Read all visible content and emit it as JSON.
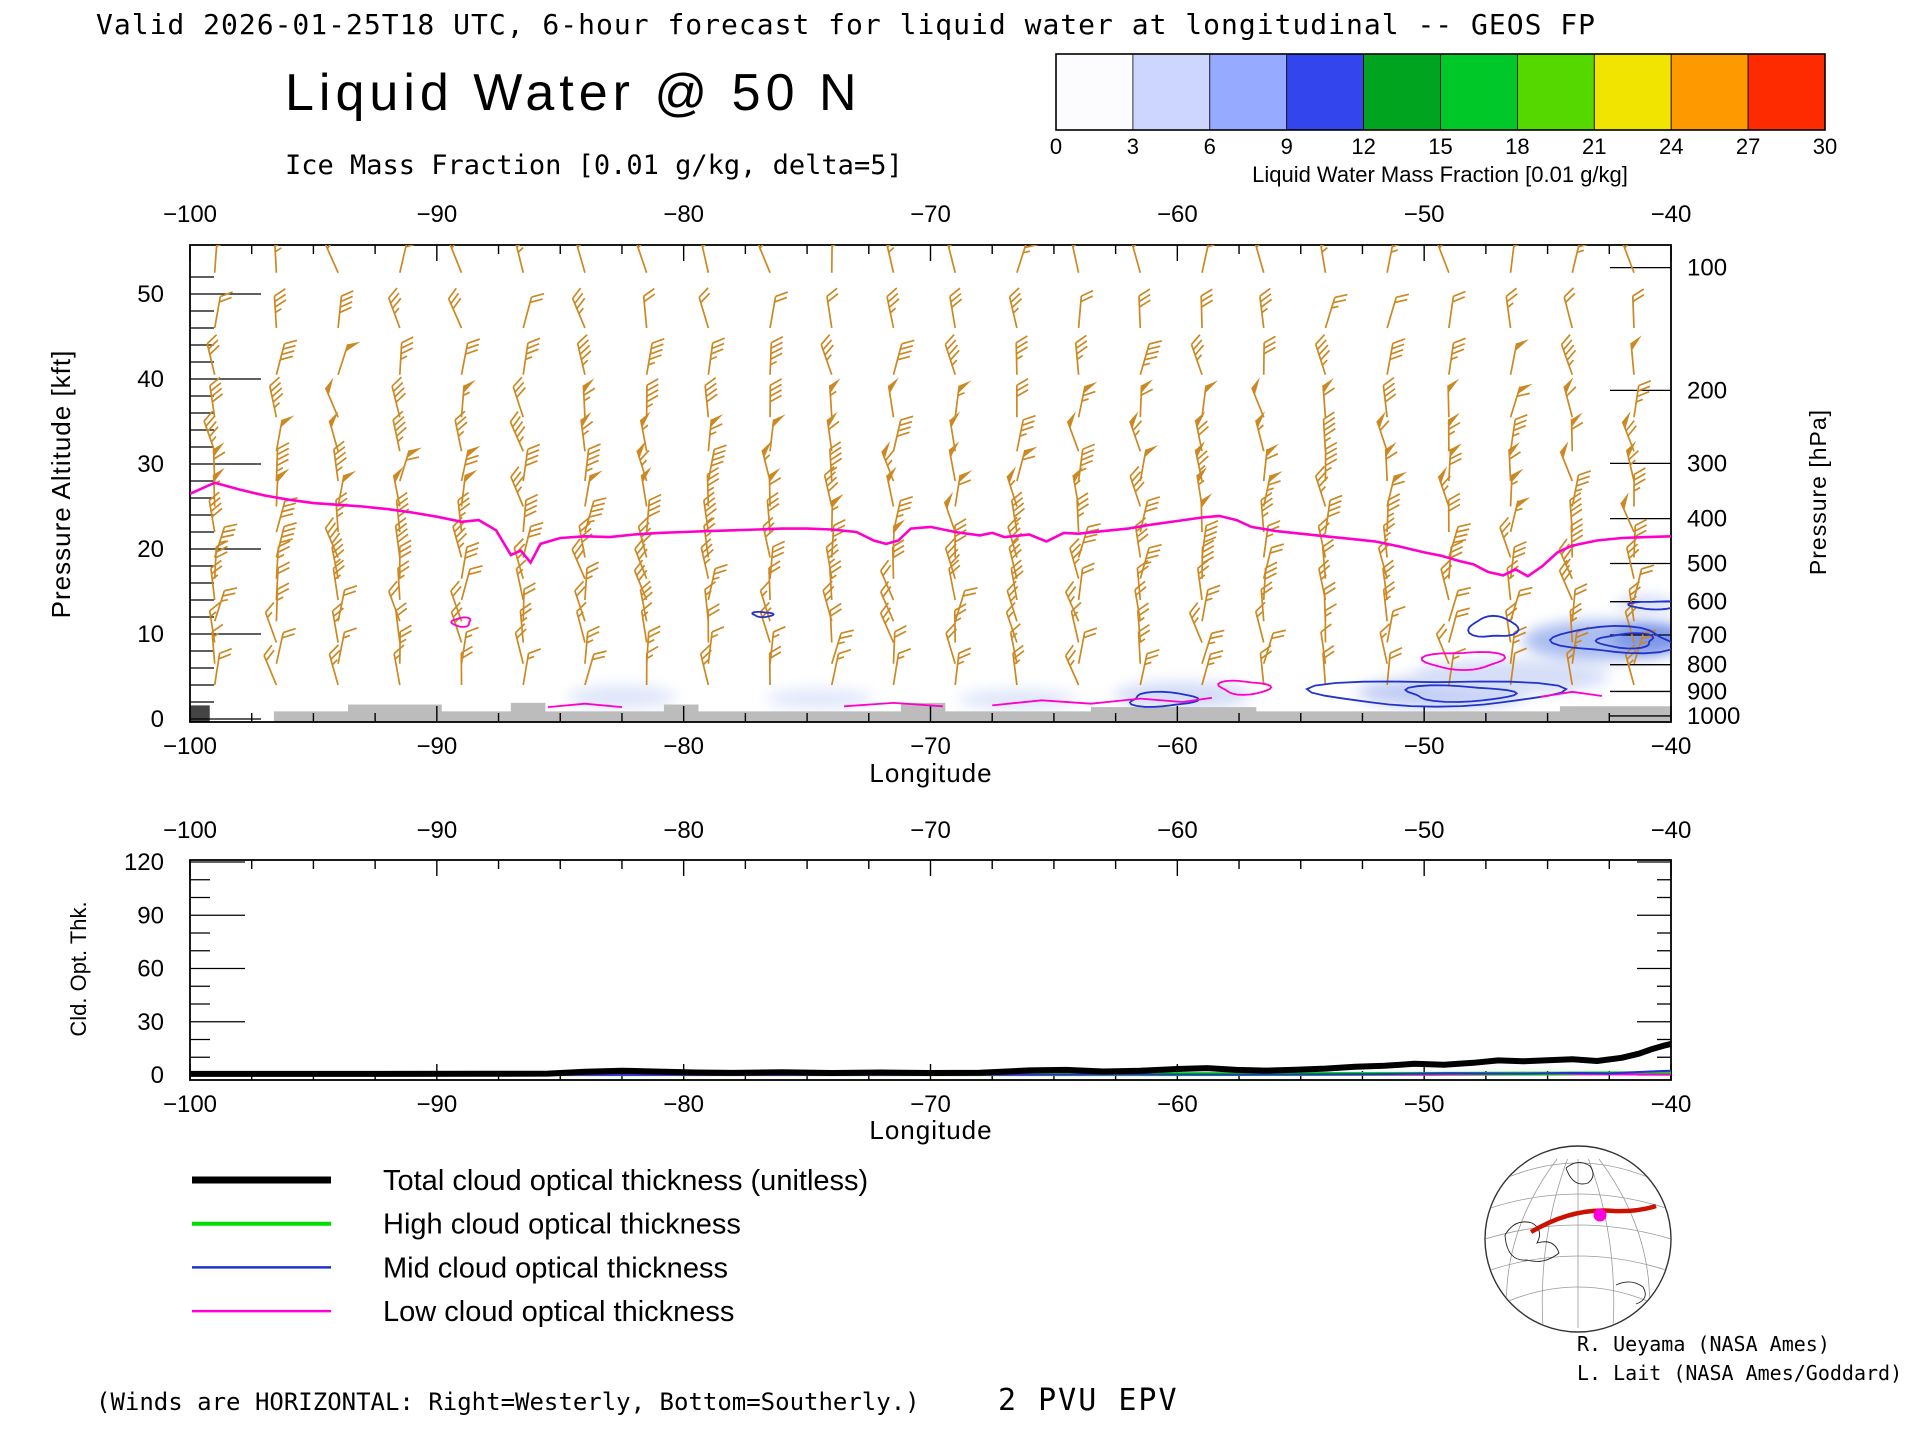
{
  "header": {
    "valid_line": "Valid 2026-01-25T18 UTC, 6-hour forecast for liquid water at longitudinal -- GEOS FP",
    "title": "Liquid Water @ 50 N",
    "subtitle": "Ice Mass Fraction [0.01 g/kg, delta=5]",
    "subtitle_color": "#2233ee"
  },
  "colorbar": {
    "label": "Liquid Water Mass Fraction [0.01 g/kg]",
    "ticks": [
      0,
      3,
      6,
      9,
      12,
      15,
      18,
      21,
      24,
      27,
      30
    ],
    "colors": [
      "#fcfcff",
      "#ccd6ff",
      "#96aaff",
      "#3346ee",
      "#00a41e",
      "#00c828",
      "#55d800",
      "#f0e400",
      "#ff9900",
      "#ff2b00"
    ]
  },
  "main_plot": {
    "xlabel": "Longitude",
    "ylabel_left": "Pressure Altitude [kft]",
    "ylabel_right": "Pressure [hPa]"
  },
  "lower_plot": {
    "xlabel": "Longitude",
    "ylabel": "Cld. Opt. Thk."
  },
  "legend": [
    {
      "label": "Total cloud optical thickness (unitless)",
      "color": "#000000",
      "label_color": "#555555",
      "line_width": 7
    },
    {
      "label": "High cloud optical thickness",
      "color": "#00dd00",
      "label_color": "#22cc22",
      "line_width": 4
    },
    {
      "label": "Mid cloud optical thickness",
      "color": "#2233cc",
      "label_color": "#3344cc",
      "line_width": 2.5
    },
    {
      "label": "Low cloud optical thickness",
      "color": "#ff00dd",
      "label_color": "#ee22ee",
      "line_width": 2.5
    }
  ],
  "credits": {
    "line1": "R. Ueyama (NASA Ames)",
    "line2": "L. Lait (NASA Ames/Goddard)"
  },
  "footer": {
    "winds_note": "(Winds are HORIZONTAL: Right=Westerly, Bottom=Southerly.)",
    "winds_note_color": "#cc8822",
    "epv_label": "2 PVU EPV",
    "epv_label_color": "#ee22ee"
  },
  "map": {
    "track_color": "#cc1100",
    "marker_color": "#ff00dd"
  },
  "chart_data": [
    {
      "type": "cross-section",
      "title": "Liquid Water @ 50 N",
      "xlabel": "Longitude",
      "x_range": [
        -100,
        -40
      ],
      "x_ticks": [
        -100,
        -90,
        -80,
        -70,
        -60,
        -50,
        -40
      ],
      "ylabel_left": "Pressure Altitude [kft]",
      "y_ticks_left": [
        0,
        10,
        20,
        30,
        40,
        50
      ],
      "ylabel_right": "Pressure [hPa]",
      "y_ticks_right": [
        100,
        200,
        300,
        400,
        500,
        600,
        700,
        800,
        900,
        1000
      ],
      "y_right_kft": [
        53.1,
        38.66,
        30.07,
        23.57,
        18.29,
        13.8,
        9.88,
        6.39,
        3.24,
        0.36
      ],
      "epv_line": {
        "name": "2 PVU EPV",
        "color": "#ff00cc",
        "points": [
          [
            -100,
            26.5
          ],
          [
            -99,
            27.8
          ],
          [
            -98,
            27.0
          ],
          [
            -97,
            26.3
          ],
          [
            -96,
            25.8
          ],
          [
            -95,
            25.4
          ],
          [
            -94,
            25.2
          ],
          [
            -93,
            25.0
          ],
          [
            -92,
            24.7
          ],
          [
            -91,
            24.3
          ],
          [
            -90,
            23.8
          ],
          [
            -89,
            23.2
          ],
          [
            -88.3,
            23.4
          ],
          [
            -87.6,
            22.2
          ],
          [
            -87,
            19.3
          ],
          [
            -86.6,
            19.8
          ],
          [
            -86.2,
            18.4
          ],
          [
            -85.8,
            20.6
          ],
          [
            -85,
            21.3
          ],
          [
            -84,
            21.5
          ],
          [
            -83,
            21.4
          ],
          [
            -82,
            21.7
          ],
          [
            -81,
            21.9
          ],
          [
            -80,
            22.0
          ],
          [
            -79,
            22.1
          ],
          [
            -78,
            22.2
          ],
          [
            -77,
            22.3
          ],
          [
            -76,
            22.4
          ],
          [
            -75,
            22.4
          ],
          [
            -74,
            22.3
          ],
          [
            -73,
            22.0
          ],
          [
            -72.3,
            21.0
          ],
          [
            -71.8,
            20.6
          ],
          [
            -71.3,
            21.0
          ],
          [
            -70.8,
            22.4
          ],
          [
            -70,
            22.6
          ],
          [
            -69,
            22.0
          ],
          [
            -68,
            21.6
          ],
          [
            -67.5,
            21.9
          ],
          [
            -67,
            21.4
          ],
          [
            -66,
            21.7
          ],
          [
            -65.3,
            20.9
          ],
          [
            -64.6,
            21.9
          ],
          [
            -64,
            21.8
          ],
          [
            -63,
            22.1
          ],
          [
            -62,
            22.4
          ],
          [
            -61,
            22.9
          ],
          [
            -60,
            23.3
          ],
          [
            -59,
            23.7
          ],
          [
            -58.3,
            23.9
          ],
          [
            -57.6,
            23.4
          ],
          [
            -57,
            22.6
          ],
          [
            -56,
            22.1
          ],
          [
            -55,
            21.8
          ],
          [
            -54,
            21.5
          ],
          [
            -53,
            21.2
          ],
          [
            -52,
            20.9
          ],
          [
            -51,
            20.3
          ],
          [
            -50,
            19.6
          ],
          [
            -49.3,
            19.2
          ],
          [
            -48.6,
            18.6
          ],
          [
            -48,
            18.2
          ],
          [
            -47.4,
            17.3
          ],
          [
            -46.8,
            16.9
          ],
          [
            -46.3,
            17.6
          ],
          [
            -45.8,
            16.8
          ],
          [
            -45.2,
            18.0
          ],
          [
            -44.6,
            19.6
          ],
          [
            -44,
            20.4
          ],
          [
            -43,
            21.0
          ],
          [
            -42,
            21.3
          ],
          [
            -41,
            21.4
          ],
          [
            -40,
            21.5
          ]
        ]
      },
      "mid_cloud_contours": [
        {
          "cx": -49.5,
          "cy": 3.1,
          "rx": 4.6,
          "ry": 1.6
        },
        {
          "cx": -48.6,
          "cy": 3.0,
          "rx": 2.2,
          "ry": 0.9
        },
        {
          "cx": -60.6,
          "cy": 2.3,
          "rx": 1.4,
          "ry": 0.8
        },
        {
          "cx": -47.2,
          "cy": 10.8,
          "rx": 0.9,
          "ry": 1.3
        },
        {
          "cx": -42.3,
          "cy": 9.3,
          "rx": 2.4,
          "ry": 1.5
        },
        {
          "cx": -41.8,
          "cy": 9.2,
          "rx": 1.2,
          "ry": 0.8
        },
        {
          "cx": -40.6,
          "cy": 13.4,
          "rx": 1.0,
          "ry": 0.5
        },
        {
          "cx": -76.8,
          "cy": 12.3,
          "rx": 0.4,
          "ry": 0.3
        }
      ],
      "low_cloud_contours_closed": [
        {
          "cx": -89.0,
          "cy": 11.4,
          "rx": 0.4,
          "ry": 0.5
        },
        {
          "cx": -48.4,
          "cy": 6.9,
          "rx": 1.5,
          "ry": 1.1
        },
        {
          "cx": -57.3,
          "cy": 3.7,
          "rx": 1.0,
          "ry": 0.8
        }
      ],
      "low_cloud_contours_open": [
        [
          [
            -67.5,
            1.6
          ],
          [
            -65.5,
            2.2
          ],
          [
            -63.5,
            1.8
          ],
          [
            -61.5,
            2.4
          ],
          [
            -59.8,
            2.0
          ],
          [
            -58.6,
            2.5
          ]
        ],
        [
          [
            -73.5,
            1.5
          ],
          [
            -71.5,
            1.9
          ],
          [
            -69.5,
            1.5
          ]
        ],
        [
          [
            -45.3,
            2.6
          ],
          [
            -44.0,
            3.2
          ],
          [
            -42.8,
            2.7
          ]
        ],
        [
          [
            -85.5,
            1.4
          ],
          [
            -84.0,
            1.8
          ],
          [
            -82.5,
            1.4
          ]
        ]
      ],
      "cloud_shading": [
        {
          "cx": -82.5,
          "cy": 2.6,
          "rx": 2.2,
          "ry": 1.4,
          "color": "#dfe6fa"
        },
        {
          "cx": -74.5,
          "cy": 2.4,
          "rx": 2.2,
          "ry": 1.2,
          "color": "#e2e8fb"
        },
        {
          "cx": -66.5,
          "cy": 2.3,
          "rx": 2.4,
          "ry": 1.2,
          "color": "#dfe6fa"
        },
        {
          "cx": -59.8,
          "cy": 2.8,
          "rx": 2.8,
          "ry": 1.6,
          "color": "#d4ddf8"
        },
        {
          "cx": -49.3,
          "cy": 3.1,
          "rx": 3.4,
          "ry": 1.8,
          "color": "#c2cef5"
        },
        {
          "cx": -46.5,
          "cy": 5.0,
          "rx": 4.0,
          "ry": 2.0,
          "color": "#d5def8"
        },
        {
          "cx": -43.0,
          "cy": 9.2,
          "rx": 3.0,
          "ry": 2.4,
          "color": "#aabdf0"
        },
        {
          "cx": -40.8,
          "cy": 9.5,
          "rx": 1.6,
          "ry": 1.8,
          "color": "#7e97e8"
        },
        {
          "cx": -41.0,
          "cy": 13.5,
          "rx": 1.2,
          "ry": 0.9,
          "color": "#cdd8f7"
        }
      ],
      "terrain": [
        {
          "x0": -100,
          "x1": -99.2,
          "top_kft": 1.6,
          "color": "#444444"
        },
        {
          "x0": -96.6,
          "x1": -40,
          "top_kft": 0.9
        },
        {
          "x0": -93.6,
          "x1": -89.8,
          "top_kft": 1.7
        },
        {
          "x0": -87.0,
          "x1": -85.6,
          "top_kft": 1.9
        },
        {
          "x0": -80.8,
          "x1": -79.4,
          "top_kft": 1.7
        },
        {
          "x0": -71.2,
          "x1": -69.4,
          "top_kft": 1.9
        },
        {
          "x0": -63.5,
          "x1": -56.8,
          "top_kft": 1.4
        },
        {
          "x0": -44.5,
          "x1": -40,
          "top_kft": 1.5
        }
      ],
      "wind_barbs": {
        "color": "#cc8822",
        "lon_start": -99,
        "lon_end": -41.5,
        "lon_step": 2.5,
        "levels_kft": [
          52.5,
          46,
          40.5,
          35.5,
          31.5,
          28,
          25,
          22,
          19,
          16.5,
          14,
          11.5,
          9,
          6.5,
          4
        ],
        "speed_range_kt": [
          8,
          60
        ]
      }
    },
    {
      "type": "line",
      "ylabel": "Cld. Opt. Thk.",
      "ylim": [
        0,
        120
      ],
      "y_ticks": [
        0,
        30,
        60,
        90,
        120
      ],
      "xlabel": "Longitude",
      "x_ticks": [
        -100,
        -90,
        -80,
        -70,
        -60,
        -50,
        -40
      ],
      "series": [
        {
          "name": "Total cloud optical thickness (unitless)",
          "color": "#000000",
          "width": 6,
          "points": [
            [
              -100,
              0.6
            ],
            [
              -96,
              0.6
            ],
            [
              -92,
              0.6
            ],
            [
              -88,
              0.7
            ],
            [
              -85.5,
              0.8
            ],
            [
              -84,
              1.8
            ],
            [
              -82.5,
              2.4
            ],
            [
              -81,
              1.9
            ],
            [
              -79.5,
              1.4
            ],
            [
              -78,
              1.2
            ],
            [
              -76,
              1.5
            ],
            [
              -74,
              1.1
            ],
            [
              -72,
              1.4
            ],
            [
              -70,
              1.1
            ],
            [
              -68,
              1.3
            ],
            [
              -66,
              2.6
            ],
            [
              -64.5,
              2.9
            ],
            [
              -63,
              2.0
            ],
            [
              -61.5,
              2.4
            ],
            [
              -60,
              3.4
            ],
            [
              -58.8,
              3.9
            ],
            [
              -57.6,
              2.9
            ],
            [
              -56.4,
              2.5
            ],
            [
              -55.2,
              3.0
            ],
            [
              -54,
              3.6
            ],
            [
              -52.8,
              4.6
            ],
            [
              -51.6,
              5.2
            ],
            [
              -50.4,
              6.3
            ],
            [
              -49.2,
              5.8
            ],
            [
              -48,
              6.9
            ],
            [
              -47,
              8.2
            ],
            [
              -46,
              7.7
            ],
            [
              -45,
              8.3
            ],
            [
              -44,
              8.9
            ],
            [
              -43,
              7.9
            ],
            [
              -42,
              9.7
            ],
            [
              -41.3,
              12.0
            ],
            [
              -40.8,
              14.5
            ],
            [
              -40.3,
              16.5
            ],
            [
              -40,
              17.5
            ]
          ]
        },
        {
          "name": "High cloud optical thickness",
          "color": "#00dd00",
          "width": 4,
          "points": [
            [
              -100,
              0.5
            ],
            [
              -90,
              0.5
            ],
            [
              -80,
              0.5
            ],
            [
              -70,
              0.5
            ],
            [
              -60,
              0.5
            ],
            [
              -50,
              0.6
            ],
            [
              -45,
              0.8
            ],
            [
              -40,
              1.0
            ]
          ]
        },
        {
          "name": "Mid cloud optical thickness",
          "color": "#2233cc",
          "width": 2,
          "points": [
            [
              -100,
              0.1
            ],
            [
              -70,
              0.1
            ],
            [
              -62,
              0.4
            ],
            [
              -58,
              0.2
            ],
            [
              -52,
              0.5
            ],
            [
              -49,
              1.0
            ],
            [
              -46,
              0.8
            ],
            [
              -44,
              1.2
            ],
            [
              -42.5,
              0.9
            ],
            [
              -41.5,
              1.6
            ],
            [
              -40.5,
              2.2
            ],
            [
              -40,
              2.4
            ]
          ]
        },
        {
          "name": "Low cloud optical thickness",
          "color": "#ff00dd",
          "width": 2,
          "points": [
            [
              -100,
              0.05
            ],
            [
              -70,
              0.1
            ],
            [
              -60,
              0.3
            ],
            [
              -50,
              0.3
            ],
            [
              -44.5,
              0.9
            ],
            [
              -43.5,
              0.4
            ],
            [
              -40,
              0.3
            ]
          ]
        }
      ]
    }
  ]
}
